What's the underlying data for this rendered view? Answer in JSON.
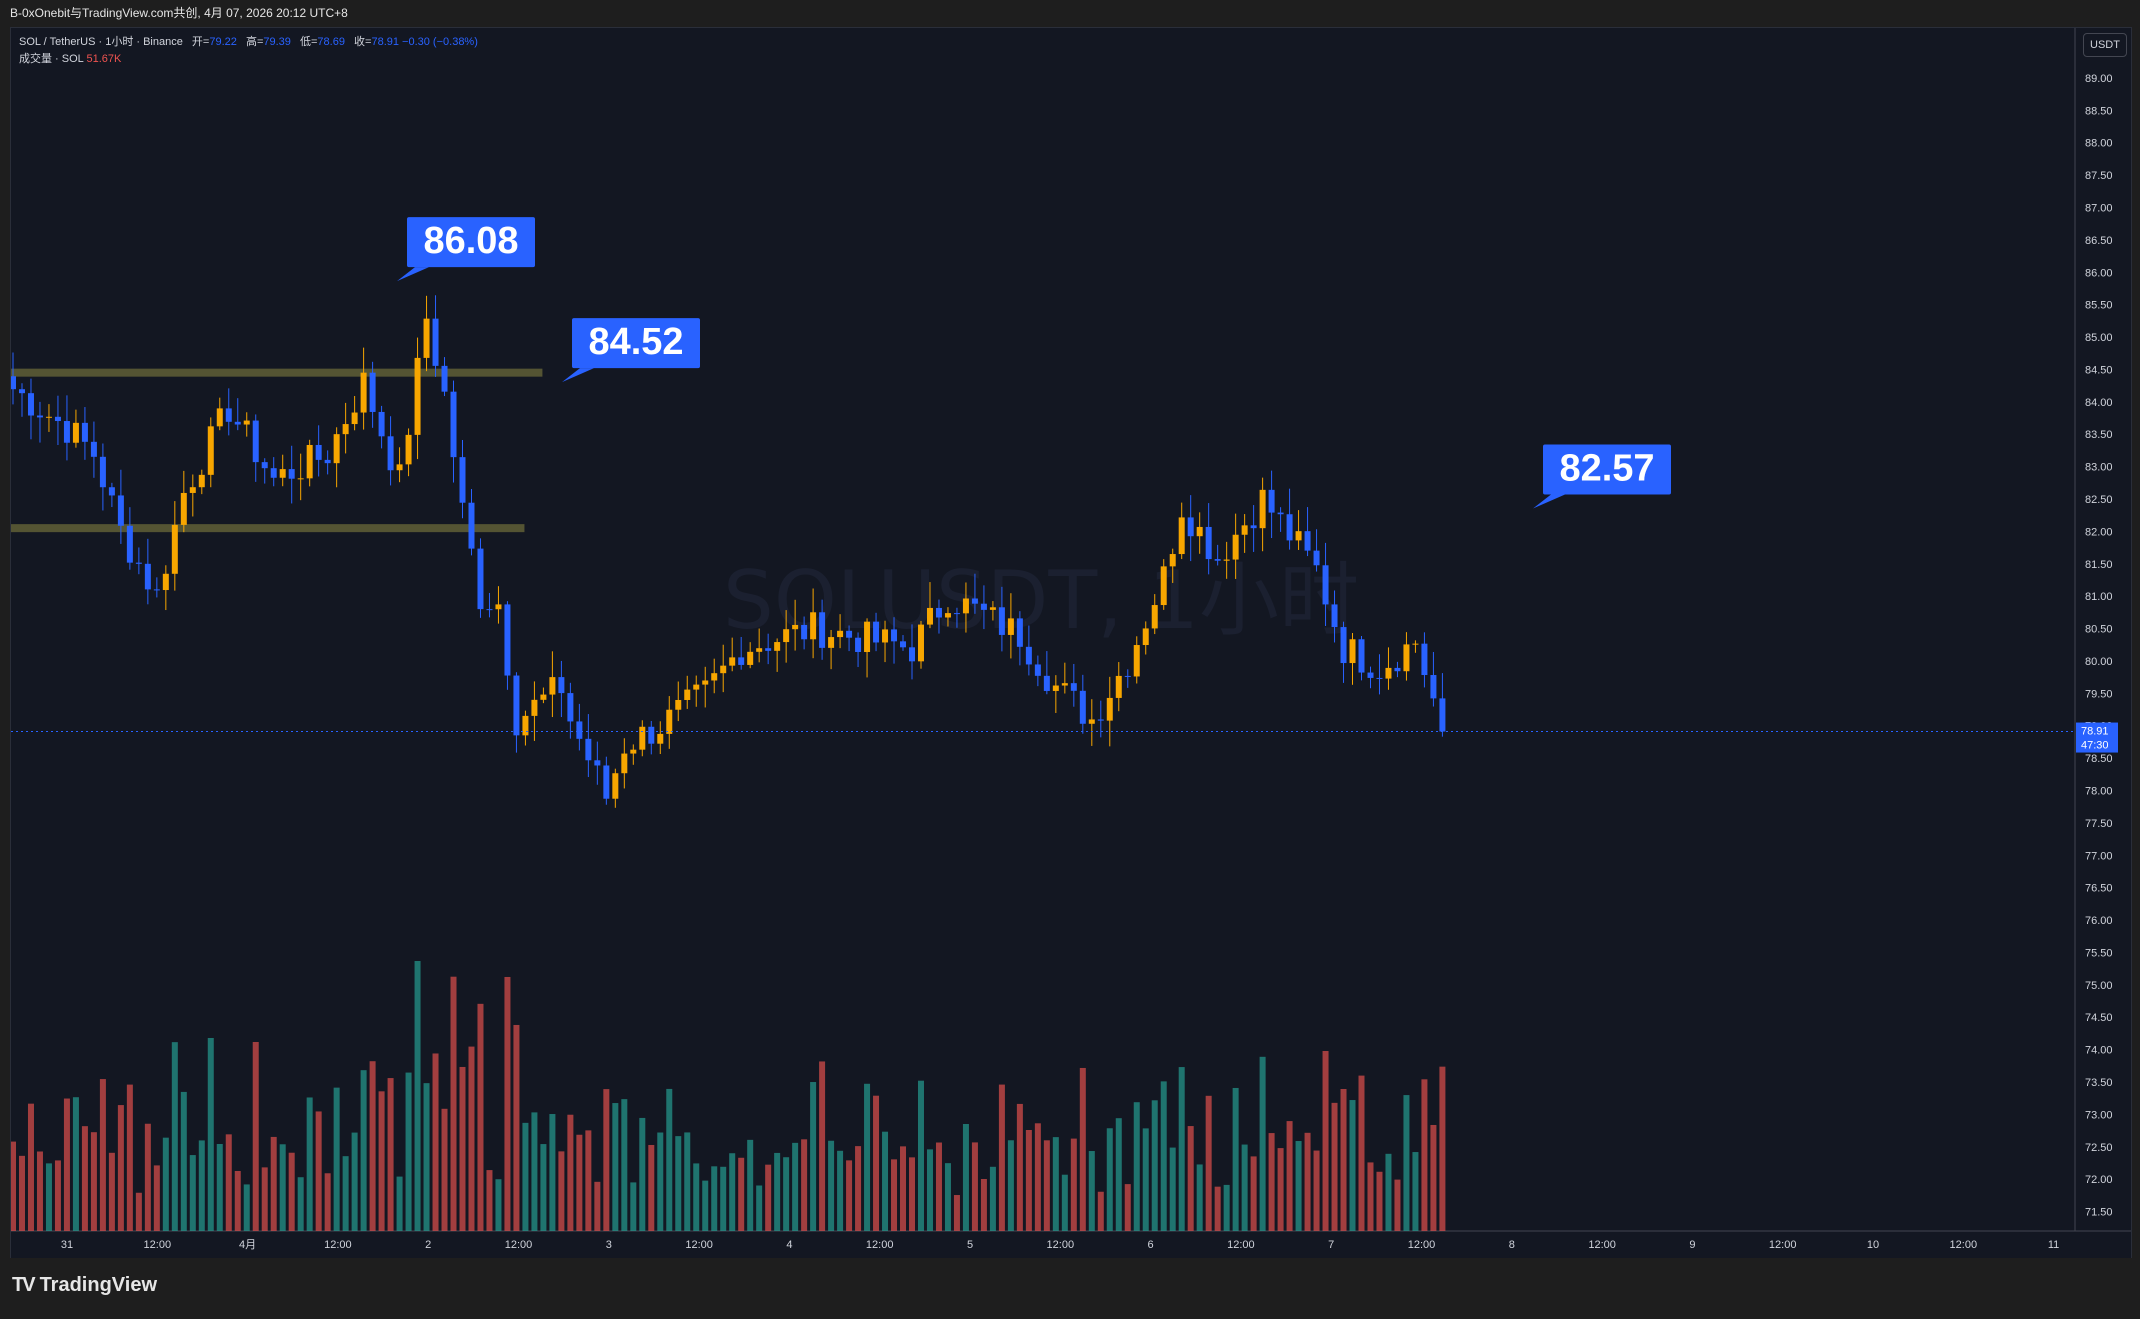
{
  "header": {
    "share_text": "B-0xOnebit与TradingView.com共创, 4月 07, 2026 20:12 UTC+8"
  },
  "legend": {
    "symbol": "SOL / TetherUS · 1小时 · Binance",
    "open_label": "开=",
    "open": "79.22",
    "high_label": "高=",
    "high": "79.39",
    "low_label": "低=",
    "low": "78.69",
    "close_label": "收=",
    "close": "78.91",
    "change": "−0.30 (−0.38%)",
    "volume_label": "成交量 · SOL",
    "volume_value": "51.67K"
  },
  "currency_button": "USDT",
  "watermark": "SOLUSDT, 1小时",
  "brand": {
    "name": "TradingView"
  },
  "colors": {
    "up": "#f7a600",
    "down": "#2962ff",
    "vol_up": "#26a69a",
    "vol_down": "#ef5350",
    "background": "#131722",
    "zone": "#6b6a3a"
  },
  "chart_data": {
    "type": "candlestick",
    "y_range": [
      71.2,
      89.4
    ],
    "y_ticks": [
      "71.50",
      "72.00",
      "72.50",
      "73.00",
      "73.50",
      "74.00",
      "74.50",
      "75.00",
      "75.50",
      "76.00",
      "76.50",
      "77.00",
      "77.50",
      "78.00",
      "78.50",
      "79.00",
      "79.50",
      "80.00",
      "80.50",
      "81.00",
      "81.50",
      "82.00",
      "82.50",
      "83.00",
      "83.50",
      "84.00",
      "84.50",
      "85.00",
      "85.50",
      "86.00",
      "86.50",
      "87.00",
      "87.50",
      "88.00",
      "88.50",
      "89.00"
    ],
    "x_tick_labels": [
      "31",
      "12:00",
      "4月",
      "12:00",
      "2",
      "12:00",
      "3",
      "12:00",
      "4",
      "12:00",
      "5",
      "12:00",
      "6",
      "12:00",
      "7",
      "12:00",
      "8",
      "12:00",
      "9",
      "12:00",
      "10",
      "12:00",
      "11"
    ],
    "current_price": "78.91",
    "countdown": "47:30",
    "annotations": [
      {
        "text": "86.08",
        "price": 86.08
      },
      {
        "text": "84.52",
        "price": 84.52
      },
      {
        "text": "82.57",
        "price": 82.57
      }
    ],
    "zones": [
      {
        "price": 84.45,
        "from_bar": 0,
        "to_bar": 58
      },
      {
        "price": 82.05,
        "from_bar": 0,
        "to_bar": 56
      }
    ],
    "close_anchors": [
      [
        0,
        84.2
      ],
      [
        6,
        83.6
      ],
      [
        9,
        83.2
      ],
      [
        12,
        82.0
      ],
      [
        16,
        81.0
      ],
      [
        19,
        82.6
      ],
      [
        24,
        83.9
      ],
      [
        29,
        82.8
      ],
      [
        35,
        83.2
      ],
      [
        39,
        84.3
      ],
      [
        43,
        82.8
      ],
      [
        46,
        85.3
      ],
      [
        48,
        84.1
      ],
      [
        50,
        82.3
      ],
      [
        52,
        81.0
      ],
      [
        54,
        80.9
      ],
      [
        56,
        79.1
      ],
      [
        61,
        79.6
      ],
      [
        62,
        79.1
      ],
      [
        66,
        77.9
      ],
      [
        68,
        78.7
      ],
      [
        72,
        79.0
      ],
      [
        77,
        79.5
      ],
      [
        81,
        80.2
      ],
      [
        89,
        80.5
      ],
      [
        100,
        80.2
      ],
      [
        104,
        81.0
      ],
      [
        112,
        80.4
      ],
      [
        116,
        79.6
      ],
      [
        120,
        79.1
      ],
      [
        124,
        80.0
      ],
      [
        128,
        81.3
      ],
      [
        130,
        82.4
      ],
      [
        134,
        81.6
      ],
      [
        139,
        82.5
      ],
      [
        145,
        81.4
      ],
      [
        148,
        80.2
      ],
      [
        152,
        79.9
      ],
      [
        156,
        80.3
      ],
      [
        158,
        79.4
      ],
      [
        159,
        78.91
      ]
    ],
    "volume_ratio_base": 0.9
  }
}
